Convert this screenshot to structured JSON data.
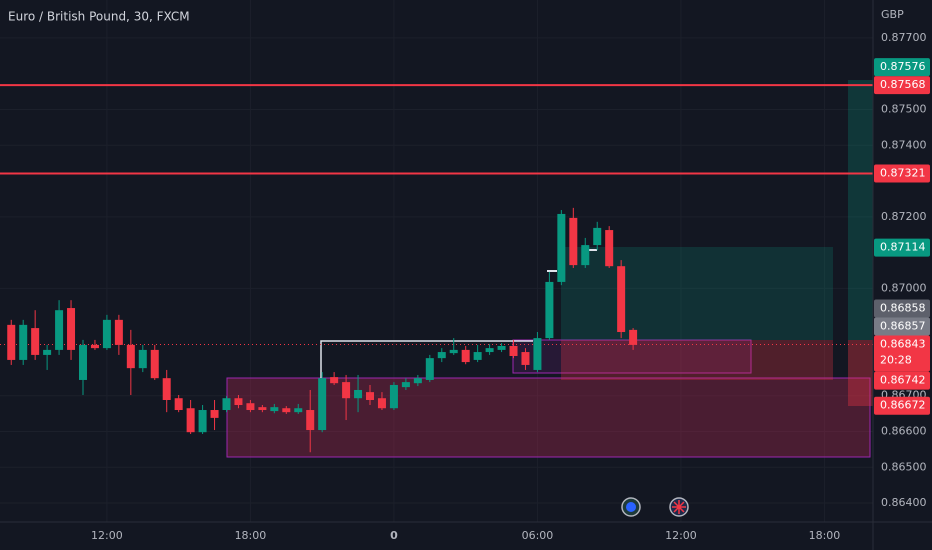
{
  "chart_data": {
    "type": "candlestick",
    "title": "Euro / British Pound, 30, FXCM",
    "currency": "GBP",
    "up_color": "#089981",
    "down_color": "#f23645",
    "grid": true,
    "x": [
      -16,
      -15.5,
      -15,
      -14.5,
      -14,
      -13.5,
      -13,
      -12.5,
      -12,
      -11.5,
      -11,
      -10.5,
      -10,
      -9.5,
      -9,
      -8.5,
      -8,
      -7.5,
      -7,
      -6.5,
      -6,
      -5.5,
      -5,
      -4.5,
      -4,
      -3.5,
      -3,
      -2.5,
      -2,
      -1.5,
      -1,
      -0.5,
      0,
      0.5,
      1,
      1.5,
      2,
      2.5,
      3,
      3.5,
      4,
      4.5,
      5,
      5.5,
      6,
      6.5,
      7,
      7.5,
      8,
      8.5,
      9,
      9.5,
      10
    ],
    "open": [
      0.86898,
      0.868,
      0.86889,
      0.86814,
      0.86828,
      0.86945,
      0.86744,
      0.86842,
      0.86833,
      0.86912,
      0.86842,
      0.86777,
      0.86828,
      0.86749,
      0.86693,
      0.86665,
      0.86598,
      0.8666,
      0.8666,
      0.86693,
      0.86679,
      0.86668,
      0.86657,
      0.86665,
      0.86654,
      0.8666,
      0.86604,
      0.86752,
      0.86738,
      0.86693,
      0.8671,
      0.86693,
      0.86665,
      0.86724,
      0.86735,
      0.86744,
      0.86805,
      0.86819,
      0.86828,
      0.868,
      0.86822,
      0.86828,
      0.86839,
      0.86822,
      0.86772,
      0.86861,
      0.87018,
      0.87197,
      0.87065,
      0.87121,
      0.87163,
      0.87062,
      0.86884
    ],
    "high": [
      0.86912,
      0.86912,
      0.86939,
      0.86842,
      0.86967,
      0.86967,
      0.86856,
      0.86856,
      0.86926,
      0.86926,
      0.86884,
      0.86842,
      0.86842,
      0.86772,
      0.86702,
      0.86688,
      0.86674,
      0.86688,
      0.86699,
      0.86702,
      0.86688,
      0.86674,
      0.86677,
      0.86671,
      0.86677,
      0.86716,
      0.86766,
      0.86766,
      0.86758,
      0.86758,
      0.8673,
      0.8671,
      0.86738,
      0.86749,
      0.86758,
      0.86814,
      0.86833,
      0.86861,
      0.86839,
      0.86842,
      0.86844,
      0.86847,
      0.86856,
      0.86833,
      0.86878,
      0.87046,
      0.87219,
      0.87225,
      0.87141,
      0.87186,
      0.87174,
      0.87079,
      0.86889
    ],
    "low": [
      0.86786,
      0.86786,
      0.868,
      0.86772,
      0.86814,
      0.868,
      0.86702,
      0.86828,
      0.86828,
      0.86814,
      0.86702,
      0.86766,
      0.86744,
      0.86654,
      0.86654,
      0.86593,
      0.86593,
      0.86604,
      0.86654,
      0.86665,
      0.86654,
      0.86654,
      0.86651,
      0.86649,
      0.86649,
      0.86542,
      0.86598,
      0.8673,
      0.86632,
      0.86654,
      0.86674,
      0.8666,
      0.8666,
      0.86716,
      0.86727,
      0.86738,
      0.86794,
      0.86814,
      0.86788,
      0.86794,
      0.86814,
      0.86822,
      0.86805,
      0.86772,
      0.86766,
      0.86856,
      0.87009,
      0.87057,
      0.87057,
      0.87107,
      0.87057,
      0.86861,
      0.86828
    ],
    "close": [
      0.868,
      0.86898,
      0.86814,
      0.86828,
      0.86939,
      0.86828,
      0.86842,
      0.86833,
      0.86912,
      0.86842,
      0.86777,
      0.86828,
      0.86749,
      0.86688,
      0.8666,
      0.86598,
      0.8666,
      0.86638,
      0.86693,
      0.86674,
      0.8666,
      0.8666,
      0.86668,
      0.86654,
      0.86665,
      0.86604,
      0.86749,
      0.86735,
      0.86693,
      0.86716,
      0.86688,
      0.86665,
      0.8673,
      0.86738,
      0.86749,
      0.86805,
      0.86822,
      0.86828,
      0.86794,
      0.86822,
      0.86833,
      0.86839,
      0.86811,
      0.86786,
      0.86861,
      0.87018,
      0.87208,
      0.87065,
      0.87121,
      0.87169,
      0.87062,
      0.86878,
      0.86842
    ],
    "xlim": [
      -16.47,
      20.03
    ],
    "xticks": [
      {
        "value": -12,
        "label": "12:00"
      },
      {
        "value": -6,
        "label": "18:00"
      },
      0,
      {
        "value": 6,
        "label": "06:00"
      },
      {
        "value": 12,
        "label": "12:00"
      },
      {
        "value": 18,
        "label": "18:00"
      }
    ],
    "ylim": [
      0.86347,
      0.87806
    ],
    "yticks": [
      {
        "value": 0.877,
        "label": "0.87700"
      },
      {
        "value": 0.875,
        "label": "0.87500"
      },
      {
        "value": 0.874,
        "label": "0.87400"
      },
      {
        "value": 0.872,
        "label": "0.87200"
      },
      {
        "value": 0.87,
        "label": "0.87000"
      },
      {
        "value": 0.867,
        "label": "0.86700"
      },
      {
        "value": 0.866,
        "label": "0.86600"
      },
      {
        "value": 0.865,
        "label": "0.86500"
      },
      {
        "value": 0.864,
        "label": "0.86400"
      }
    ],
    "price_labels": [
      {
        "value": 0.87576,
        "color": "#089981"
      },
      {
        "value": 0.87568,
        "color": "#f23645",
        "line": true
      },
      {
        "value": 0.87321,
        "color": "#f23645",
        "line": true
      },
      {
        "value": 0.87114,
        "color": "#089981"
      },
      {
        "value": 0.86858,
        "color": "#5d606b"
      },
      {
        "value": 0.86857,
        "color": "#787b86"
      },
      {
        "value": 0.86742,
        "color": "#f23645"
      },
      {
        "value": 0.86672,
        "color": "#f23645"
      }
    ],
    "current_price": {
      "value": 0.86843,
      "countdown": "20:28",
      "color": "#f23645"
    }
  }
}
